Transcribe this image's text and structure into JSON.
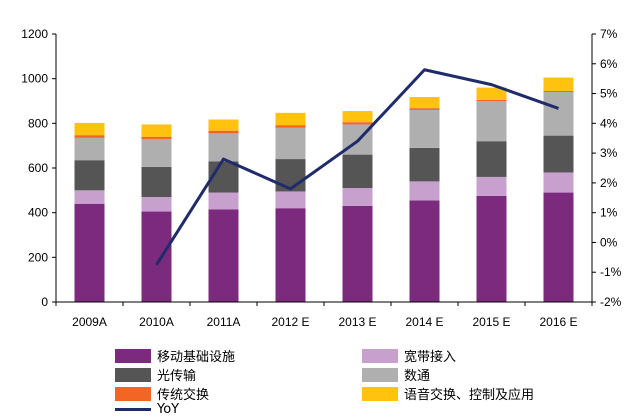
{
  "chart_data": {
    "type": "bar",
    "stacked": true,
    "categories": [
      "2009A",
      "2010A",
      "2011A",
      "2012 E",
      "2013 E",
      "2014 E",
      "2015 E",
      "2016 E"
    ],
    "series": [
      {
        "name": "移动基础设施",
        "color": "#7B2A7E",
        "values": [
          440,
          405,
          415,
          420,
          430,
          455,
          475,
          490
        ]
      },
      {
        "name": "宽带接入",
        "color": "#C7A0CE",
        "values": [
          60,
          65,
          75,
          75,
          80,
          85,
          85,
          90
        ]
      },
      {
        "name": "光传输",
        "color": "#555555",
        "values": [
          135,
          135,
          140,
          145,
          150,
          150,
          160,
          165
        ]
      },
      {
        "name": "数通",
        "color": "#AFAFAF",
        "values": [
          100,
          125,
          125,
          140,
          135,
          170,
          180,
          195
        ]
      },
      {
        "name": "传统交换",
        "color": "#F26522",
        "values": [
          12,
          10,
          12,
          12,
          10,
          8,
          5,
          5
        ]
      },
      {
        "name": "语音交换、控制及应用",
        "color": "#FFC20E",
        "values": [
          55,
          55,
          50,
          55,
          50,
          50,
          55,
          60
        ]
      }
    ],
    "line": {
      "name": "YoY",
      "color": "#1F2B6B",
      "axis": "right",
      "values": [
        null,
        -0.75,
        2.8,
        1.8,
        3.4,
        5.8,
        5.3,
        4.5
      ]
    },
    "ylim_left": [
      0,
      1200
    ],
    "yticks_left": [
      "0",
      "200",
      "400",
      "600",
      "800",
      "1000",
      "1200"
    ],
    "ylim_right": [
      -2,
      7
    ],
    "yticks_right": [
      "-2%",
      "-1%",
      "0%",
      "1%",
      "2%",
      "3%",
      "4%",
      "5%",
      "6%",
      "7%"
    ],
    "grid": false,
    "legend_position": "bottom"
  }
}
